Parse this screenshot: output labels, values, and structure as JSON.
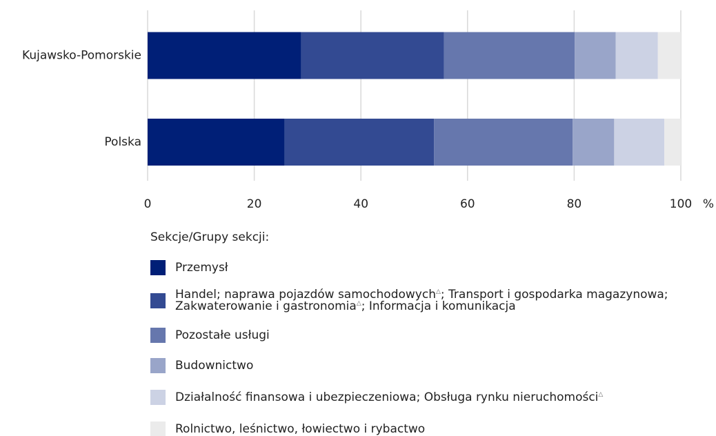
{
  "chart_data": {
    "type": "stacked_barh",
    "categories": [
      "Kujawsko-Pomorskie",
      "Polska"
    ],
    "xlabel": "%",
    "xlim": [
      0,
      100
    ],
    "xticks": [
      0,
      20,
      40,
      60,
      80,
      100
    ],
    "grid": true,
    "legend_title": "Sekcje/Grupy sekcji:",
    "series": [
      {
        "name": "Przemysł",
        "color": "#001f77",
        "values": [
          28.8,
          25.7
        ]
      },
      {
        "name": "Handel; naprawa pojazdów samochodowych△; Transport i gospodarka magazynowa; Zakwaterowanie i gastronomia△; Informacja i komunikacja",
        "color": "#334a92",
        "values": [
          26.8,
          28.0
        ]
      },
      {
        "name": "Pozostałe usługi",
        "color": "#6677ad",
        "values": [
          24.5,
          26.0
        ]
      },
      {
        "name": "Budownictwo",
        "color": "#99a5c9",
        "values": [
          7.7,
          7.8
        ]
      },
      {
        "name": "Działalność finansowa i ubezpieczeniowa; Obsługa rynku nieruchomości△",
        "color": "#ccd2e4",
        "values": [
          7.9,
          9.4
        ]
      },
      {
        "name": "Rolnictwo, leśnictwo, łowiectwo i rybactwo",
        "color": "#ebebeb",
        "values": [
          4.3,
          3.1
        ]
      }
    ]
  }
}
